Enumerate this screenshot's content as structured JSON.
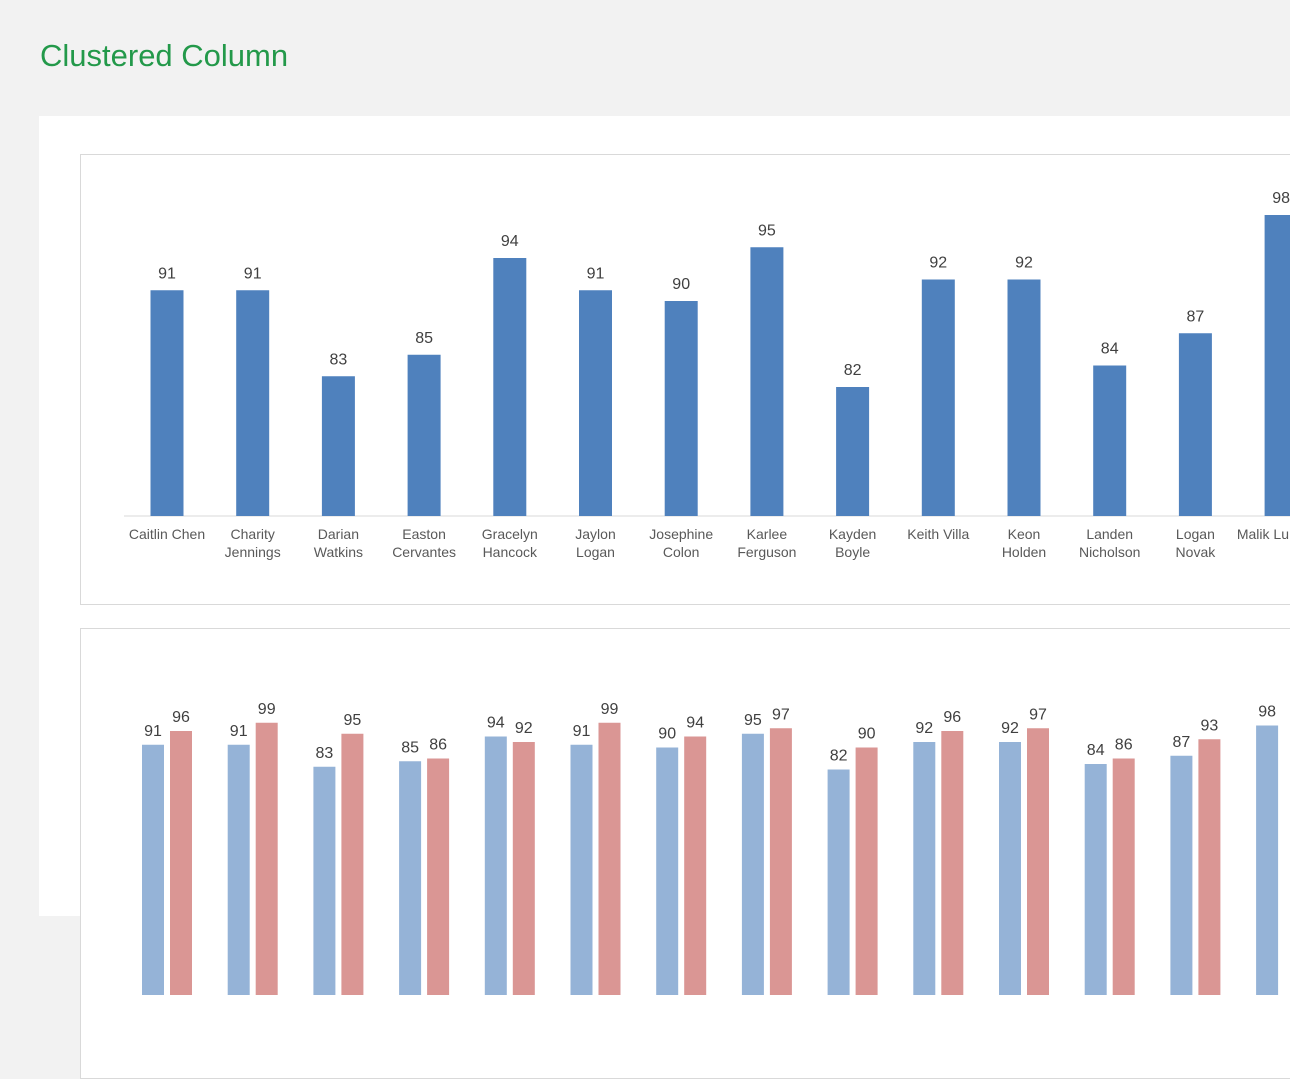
{
  "page": {
    "title": "Clustered Column"
  },
  "colors": {
    "title": "#23994a",
    "series1": "#4f81bd",
    "series1_light": "#95b3d7",
    "series2_light": "#da9694"
  },
  "chart_data": [
    {
      "type": "bar",
      "categories": [
        "Caitlin Chen",
        "Charity Jennings",
        "Darian Watkins",
        "Easton Cervantes",
        "Gracelyn Hancock",
        "Jaylon Logan",
        "Josephine Colon",
        "Karlee Ferguson",
        "Kayden Boyle",
        "Keith Villa",
        "Keon Holden",
        "Landen Nicholson",
        "Logan Novak",
        "Malik Lu"
      ],
      "series": [
        {
          "values": [
            91,
            91,
            83,
            85,
            94,
            91,
            90,
            95,
            82,
            92,
            92,
            84,
            87,
            98
          ]
        }
      ],
      "ylim": [
        70,
        100
      ],
      "data_labels": true,
      "grid": false
    },
    {
      "type": "bar",
      "categories": [
        "Caitlin Chen",
        "Charity Jennings",
        "Darian Watkins",
        "Easton Cervantes",
        "Gracelyn Hancock",
        "Jaylon Logan",
        "Josephine Colon",
        "Karlee Ferguson",
        "Kayden Boyle",
        "Keith Villa",
        "Keon Holden",
        "Landen Nicholson",
        "Logan Novak",
        "Malik Lu"
      ],
      "series": [
        {
          "values": [
            91,
            91,
            83,
            85,
            94,
            91,
            90,
            95,
            82,
            92,
            92,
            84,
            87,
            98
          ]
        },
        {
          "values": [
            96,
            99,
            95,
            86,
            92,
            99,
            94,
            97,
            90,
            96,
            97,
            86,
            93,
            null
          ]
        }
      ],
      "data_labels": true,
      "grid": false
    }
  ]
}
